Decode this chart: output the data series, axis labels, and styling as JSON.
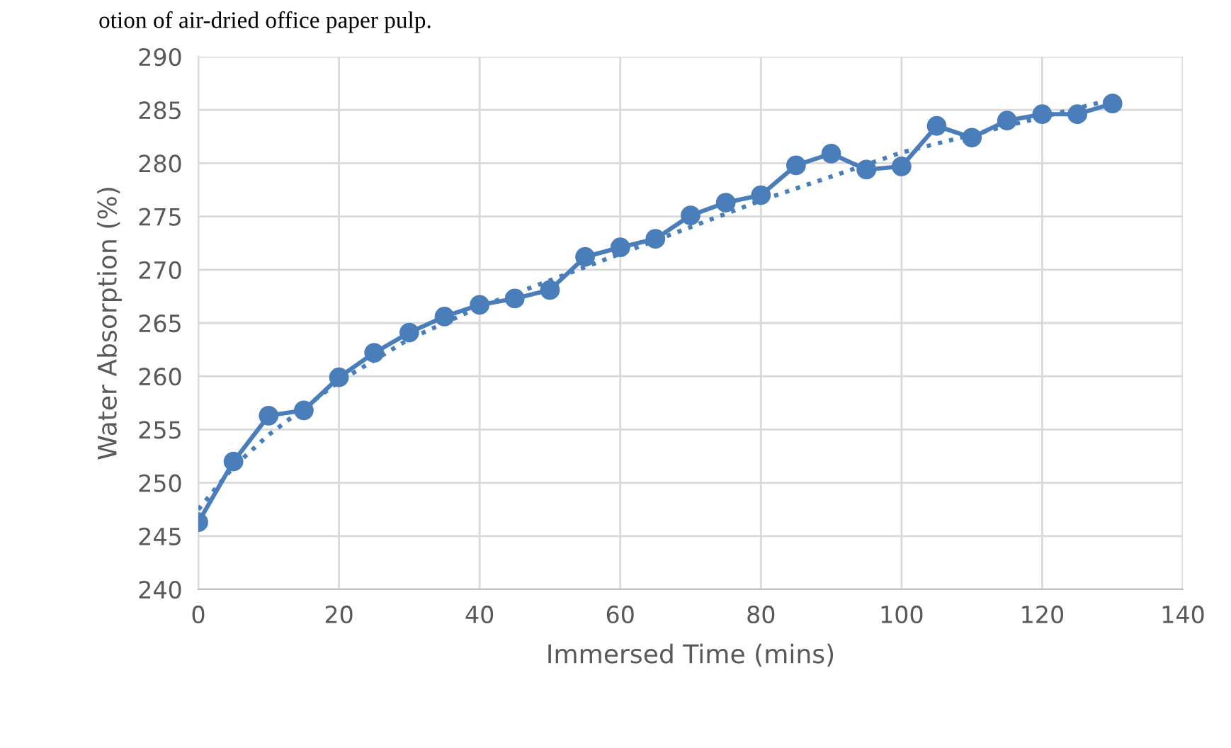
{
  "chart_data": {
    "type": "line",
    "xlabel": "Immersed Time (mins)",
    "ylabel": "Water Absorption (%)",
    "annotations": [
      "otion of air-dried office paper pulp."
    ],
    "series": [
      {
        "color": "#4a7ebb",
        "marker": "circle",
        "line_style": "solid",
        "x": [
          0,
          5,
          10,
          15,
          20,
          25,
          30,
          35,
          40,
          45,
          50,
          55,
          60,
          65,
          70,
          75,
          80,
          85,
          90,
          95,
          100,
          105,
          110,
          115,
          120,
          125,
          130
        ],
        "values": [
          246.3,
          252.0,
          256.3,
          256.8,
          259.9,
          262.2,
          264.1,
          265.6,
          266.7,
          267.3,
          268.1,
          271.2,
          272.1,
          272.9,
          275.1,
          276.3,
          277.0,
          279.8,
          280.9,
          279.4,
          279.7,
          283.5,
          282.4,
          284.0,
          284.6,
          284.6,
          285.6
        ]
      },
      {
        "color": "#4a7ebb",
        "marker": "none",
        "line_style": "dotted",
        "x": [
          0,
          5,
          10,
          20,
          30,
          40,
          60,
          80,
          100,
          130
        ],
        "values": [
          247.5,
          251.5,
          254.5,
          259.5,
          263.5,
          266.5,
          271.5,
          276.5,
          281,
          286
        ]
      }
    ],
    "xlim": [
      0,
      140
    ],
    "xticks": [
      0,
      20,
      40,
      60,
      80,
      100,
      120,
      140
    ],
    "ylim": [
      240,
      290
    ],
    "yticks": [
      240,
      245,
      250,
      255,
      260,
      265,
      270,
      275,
      280,
      285,
      290
    ],
    "grid": true,
    "legend": false
  }
}
